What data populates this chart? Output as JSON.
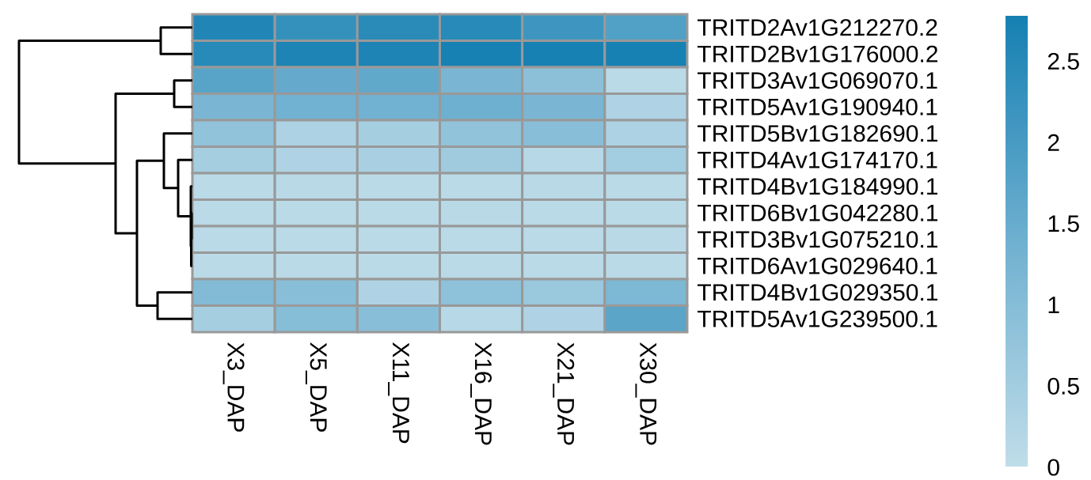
{
  "chart_data": {
    "type": "heatmap",
    "categories": [
      "X3_DAP",
      "X5_DAP",
      "X11_DAP",
      "X16_DAP",
      "X21_DAP",
      "X30_DAP"
    ],
    "y_categories": [
      "TRITD2Av1G212270.2",
      "TRITD2Bv1G176000.2",
      "TRITD3Av1G069070.1",
      "TRITD5Av1G190940.1",
      "TRITD5Bv1G182690.1",
      "TRITD4Av1G174170.1",
      "TRITD4Bv1G184990.1",
      "TRITD6Bv1G042280.1",
      "TRITD3Bv1G075210.1",
      "TRITD6Av1G029640.1",
      "TRITD4Bv1G029350.1",
      "TRITD5Av1G239500.1"
    ],
    "cells": [
      [
        2.6,
        2.3,
        2.45,
        2.5,
        2.15,
        1.85
      ],
      [
        2.5,
        2.65,
        2.65,
        2.75,
        2.75,
        2.75
      ],
      [
        1.75,
        1.55,
        1.6,
        1.2,
        0.9,
        0.1
      ],
      [
        1.2,
        1.35,
        1.35,
        1.4,
        1.2,
        0.3
      ],
      [
        0.8,
        0.35,
        0.45,
        0.8,
        0.95,
        0.35
      ],
      [
        0.45,
        0.3,
        0.4,
        0.55,
        0.15,
        0.5
      ],
      [
        0.1,
        0.12,
        0.1,
        0.1,
        0.12,
        0.1
      ],
      [
        0.1,
        0.1,
        0.1,
        0.12,
        0.1,
        0.1
      ],
      [
        0.1,
        0.1,
        0.1,
        0.1,
        0.1,
        0.12
      ],
      [
        0.1,
        0.1,
        0.1,
        0.1,
        0.1,
        0.1
      ],
      [
        1.05,
        0.95,
        0.3,
        0.85,
        0.65,
        1.15
      ],
      [
        0.45,
        1.0,
        0.95,
        0.15,
        0.3,
        1.7
      ]
    ],
    "clim": [
      0,
      2.78
    ],
    "cticks": [
      0,
      0.5,
      1,
      1.5,
      2,
      2.5
    ]
  }
}
